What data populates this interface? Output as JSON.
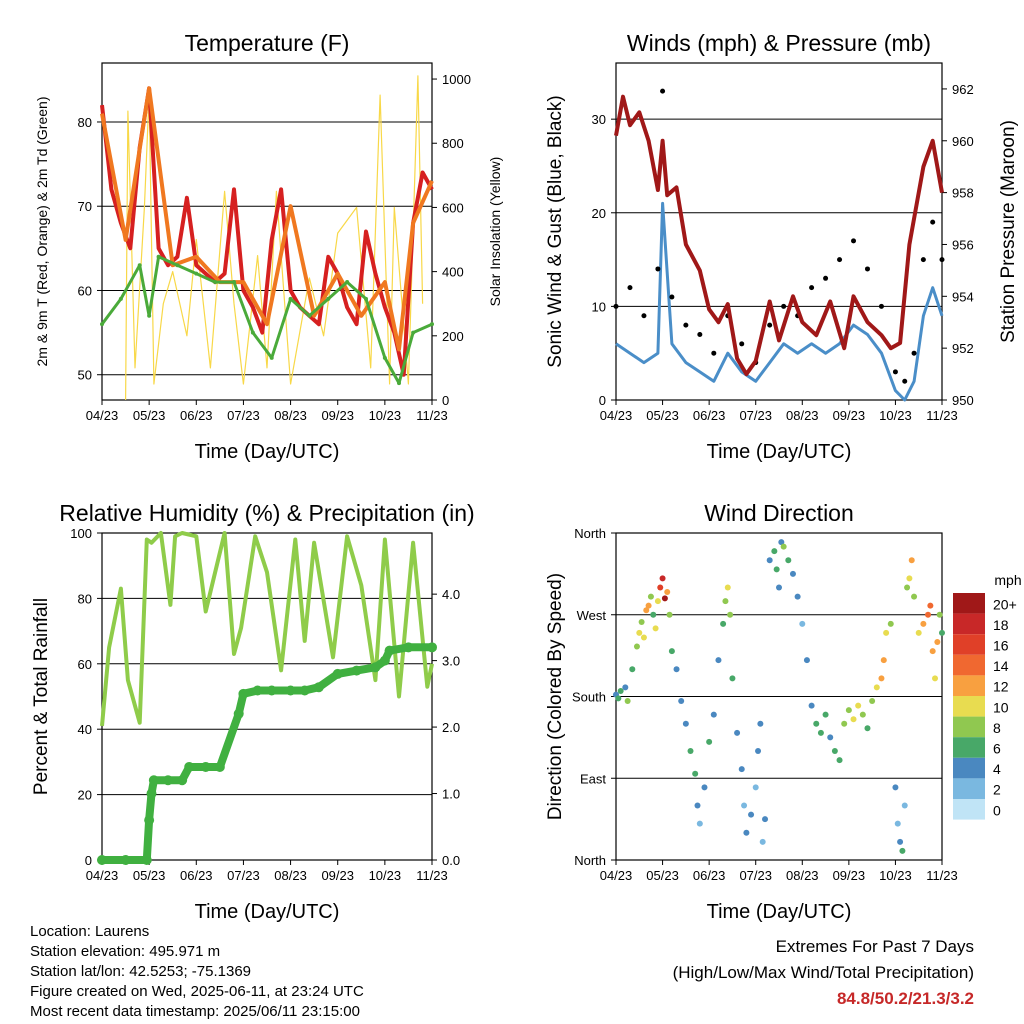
{
  "months": [
    "04/23",
    "05/23",
    "06/23",
    "07/23",
    "08/23",
    "09/23",
    "10/23",
    "11/23"
  ],
  "colors": {
    "temp2m": "#d62020",
    "temp9m": "#f07820",
    "dewpoint": "#4aaa3a",
    "solar": "#f8d848",
    "wind": "#4a8ec8",
    "gust": "#000000",
    "pressure": "#a01818",
    "rh": "#8fcc4a",
    "precip": "#40b040"
  },
  "chart_data": [
    {
      "type": "line",
      "title": "Temperature (F)",
      "xlabel": "Time (Day/UTC)",
      "ylabel": "2m & 9m T (Red, Orange) & 2m Td (Green)",
      "ylabel_right": "Solar Insolation (Yellow)",
      "ylim": [
        47,
        87
      ],
      "yticks": [
        50,
        60,
        70,
        80
      ],
      "ylim_right": [
        0,
        1050
      ],
      "yticks_right": [
        0,
        200,
        400,
        600,
        800,
        1000
      ],
      "grid": true,
      "series": [
        {
          "key": "temp2m",
          "axis": "left",
          "x": [
            0,
            0.2,
            0.4,
            0.6,
            0.8,
            1.0,
            1.2,
            1.4,
            1.6,
            1.8,
            2.0,
            2.2,
            2.4,
            2.6,
            2.8,
            3.0,
            3.2,
            3.4,
            3.6,
            3.8,
            4.0,
            4.2,
            4.4,
            4.6,
            4.8,
            5.0,
            5.2,
            5.4,
            5.6,
            5.8,
            6.0,
            6.2,
            6.4,
            6.6,
            6.8,
            7.0
          ],
          "values": [
            82,
            72,
            68,
            65,
            77,
            84,
            65,
            63,
            64,
            71,
            63,
            62,
            61,
            62,
            72,
            60,
            58,
            55,
            66,
            72,
            60,
            58,
            57,
            56,
            64,
            62,
            58,
            56,
            67,
            62,
            58,
            55,
            50,
            68,
            74,
            72
          ]
        },
        {
          "key": "temp9m",
          "axis": "left",
          "x": [
            0,
            0.5,
            1.0,
            1.5,
            2.0,
            2.5,
            3.0,
            3.5,
            4.0,
            4.5,
            5.0,
            5.5,
            6.0,
            6.3,
            6.6,
            7.0
          ],
          "values": [
            81,
            66,
            84,
            63,
            64,
            61,
            61,
            56,
            70,
            57,
            62,
            57,
            61,
            53,
            68,
            73
          ]
        },
        {
          "key": "dewpoint",
          "axis": "left",
          "x": [
            0,
            0.4,
            0.8,
            1.0,
            1.2,
            1.6,
            2.0,
            2.4,
            2.8,
            3.2,
            3.6,
            4.0,
            4.4,
            4.8,
            5.2,
            5.6,
            6.0,
            6.3,
            6.6,
            7.0
          ],
          "values": [
            56,
            59,
            63,
            57,
            64,
            63,
            62,
            61,
            61,
            55,
            52,
            59,
            57,
            59,
            61,
            59,
            52,
            49,
            55,
            56
          ]
        },
        {
          "key": "solar",
          "axis": "right",
          "x": [
            0.5,
            0.55,
            0.7,
            0.9,
            1.0,
            1.1,
            1.3,
            1.5,
            1.8,
            2.0,
            2.3,
            2.6,
            2.8,
            3.0,
            3.3,
            3.5,
            3.7,
            4.0,
            4.4,
            4.7,
            5.0,
            5.4,
            5.7,
            5.9,
            6.1,
            6.2,
            6.5,
            6.7,
            6.8
          ],
          "values": [
            0,
            900,
            100,
            600,
            950,
            50,
            300,
            400,
            200,
            500,
            100,
            650,
            300,
            50,
            450,
            100,
            650,
            50,
            380,
            200,
            520,
            600,
            100,
            950,
            50,
            600,
            50,
            1010,
            300
          ]
        }
      ]
    },
    {
      "type": "line",
      "title": "Winds (mph) & Pressure (mb)",
      "xlabel": "Time (Day/UTC)",
      "ylabel": "Sonic Wind & Gust (Blue, Black)",
      "ylabel_right": "Station Pressure (Maroon)",
      "ylim": [
        0,
        36
      ],
      "yticks": [
        0,
        10,
        20,
        30
      ],
      "ylim_right": [
        950,
        963
      ],
      "yticks_right": [
        950,
        952,
        954,
        956,
        958,
        960,
        962
      ],
      "grid": true,
      "series": [
        {
          "key": "wind",
          "axis": "left",
          "x": [
            0,
            0.3,
            0.6,
            0.9,
            1.0,
            1.2,
            1.5,
            1.8,
            2.1,
            2.4,
            2.7,
            3.0,
            3.3,
            3.6,
            3.9,
            4.2,
            4.5,
            4.8,
            5.1,
            5.4,
            5.7,
            6.0,
            6.2,
            6.4,
            6.6,
            6.8,
            7.0
          ],
          "values": [
            6,
            5,
            4,
            5,
            21,
            6,
            4,
            3,
            2,
            5,
            3,
            2,
            4,
            6,
            5,
            6,
            5,
            6,
            8,
            7,
            5,
            1,
            0,
            2,
            9,
            12,
            9
          ]
        },
        {
          "key": "gust",
          "axis": "left",
          "x": [
            0,
            0.3,
            0.6,
            0.9,
            1.0,
            1.2,
            1.5,
            1.8,
            2.1,
            2.4,
            2.7,
            3.0,
            3.3,
            3.6,
            3.9,
            4.2,
            4.5,
            4.8,
            5.1,
            5.4,
            5.7,
            6.0,
            6.2,
            6.4,
            6.6,
            6.8,
            7.0
          ],
          "values": [
            10,
            12,
            9,
            14,
            33,
            11,
            8,
            7,
            5,
            9,
            6,
            4,
            8,
            10,
            9,
            12,
            13,
            15,
            17,
            14,
            10,
            3,
            2,
            5,
            15,
            19,
            15
          ]
        },
        {
          "key": "pressure",
          "axis": "right",
          "x": [
            0,
            0.15,
            0.3,
            0.5,
            0.7,
            0.9,
            1.0,
            1.1,
            1.3,
            1.5,
            1.8,
            2.0,
            2.2,
            2.4,
            2.6,
            2.8,
            3.0,
            3.3,
            3.5,
            3.8,
            4.0,
            4.3,
            4.6,
            4.9,
            5.1,
            5.4,
            5.7,
            5.9,
            6.1,
            6.3,
            6.6,
            6.8,
            7.0
          ],
          "values": [
            960.2,
            961.7,
            960.6,
            961.1,
            960.0,
            958.1,
            960.0,
            957.9,
            958.2,
            956.0,
            955.0,
            953.5,
            953.0,
            953.7,
            951.6,
            951.0,
            951.5,
            953.8,
            952.3,
            954.0,
            953.0,
            952.5,
            953.8,
            952.0,
            954.0,
            953.0,
            952.5,
            952.0,
            952.2,
            956.0,
            959.0,
            960.0,
            958.0
          ]
        }
      ]
    },
    {
      "type": "line",
      "title": "Relative Humidity (%) & Precipitation (in)",
      "xlabel": "Time (Day/UTC)",
      "ylabel": "Percent & Total Rainfall",
      "ylim": [
        0,
        100
      ],
      "yticks": [
        0,
        20,
        40,
        60,
        80,
        100
      ],
      "ylim_right": [
        0,
        4.92
      ],
      "yticks_right": [
        "0.0",
        "1.0",
        "2.0",
        "3.0",
        "4.0"
      ],
      "grid": true,
      "series": [
        {
          "key": "rh",
          "axis": "left",
          "x": [
            0,
            0.15,
            0.4,
            0.55,
            0.8,
            0.95,
            1.05,
            1.25,
            1.45,
            1.55,
            1.7,
            2.0,
            2.2,
            2.6,
            2.8,
            2.95,
            3.25,
            3.5,
            3.8,
            4.1,
            4.3,
            4.5,
            4.9,
            5.2,
            5.5,
            5.8,
            6.0,
            6.3,
            6.6,
            6.9,
            7.0
          ],
          "values": [
            41,
            65,
            83,
            55,
            42,
            98,
            97,
            100,
            78,
            99,
            100,
            99,
            76,
            100,
            63,
            71,
            99,
            88,
            58,
            98,
            67,
            97,
            62,
            99,
            84,
            55,
            98,
            50,
            97,
            53,
            60
          ]
        },
        {
          "key": "precip",
          "axis": "right",
          "x": [
            0,
            0.5,
            0.95,
            1.0,
            1.05,
            1.1,
            1.4,
            1.7,
            1.85,
            2.2,
            2.5,
            2.9,
            3.0,
            3.3,
            3.6,
            4.0,
            4.3,
            4.6,
            5.0,
            5.4,
            5.8,
            6.0,
            6.1,
            6.5,
            7.0
          ],
          "values": [
            0,
            0,
            0,
            0.6,
            1.0,
            1.2,
            1.2,
            1.2,
            1.4,
            1.4,
            1.4,
            2.2,
            2.5,
            2.55,
            2.55,
            2.55,
            2.55,
            2.6,
            2.8,
            2.85,
            2.9,
            3.0,
            3.15,
            3.2,
            3.2
          ]
        }
      ]
    },
    {
      "type": "scatter",
      "title": "Wind Direction",
      "xlabel": "Time (Day/UTC)",
      "ylabel": "Direction (Colored By Speed)",
      "yticks": [
        "North",
        "East",
        "South",
        "West",
        "North"
      ],
      "ylim": [
        0,
        360
      ],
      "legend": {
        "title": "mph",
        "labels": [
          "20+",
          "18",
          "16",
          "14",
          "12",
          "10",
          "8",
          "6",
          "4",
          "2",
          "0"
        ],
        "colors": [
          "#a01818",
          "#c82828",
          "#e04028",
          "#f06830",
          "#f8a040",
          "#e8dc50",
          "#90c850",
          "#48a868",
          "#4a88c0",
          "#7ab8e0",
          "#c0e4f6"
        ]
      },
      "grid": true,
      "points": [
        [
          0.0,
          182,
          4
        ],
        [
          0.05,
          178,
          5
        ],
        [
          0.1,
          186,
          6
        ],
        [
          0.2,
          190,
          4
        ],
        [
          0.25,
          175,
          7
        ],
        [
          0.35,
          210,
          6
        ],
        [
          0.45,
          235,
          8
        ],
        [
          0.5,
          250,
          9
        ],
        [
          0.55,
          262,
          7
        ],
        [
          0.6,
          245,
          10
        ],
        [
          0.65,
          275,
          11
        ],
        [
          0.7,
          280,
          12
        ],
        [
          0.75,
          290,
          8
        ],
        [
          0.8,
          270,
          6
        ],
        [
          0.85,
          255,
          9
        ],
        [
          0.9,
          285,
          10
        ],
        [
          0.95,
          300,
          16
        ],
        [
          1.0,
          310,
          18
        ],
        [
          1.05,
          288,
          20
        ],
        [
          1.1,
          295,
          12
        ],
        [
          1.15,
          270,
          7
        ],
        [
          1.2,
          230,
          5
        ],
        [
          1.3,
          210,
          4
        ],
        [
          1.4,
          175,
          3
        ],
        [
          1.5,
          150,
          4
        ],
        [
          1.6,
          120,
          5
        ],
        [
          1.7,
          95,
          6
        ],
        [
          1.75,
          60,
          3
        ],
        [
          1.8,
          40,
          2
        ],
        [
          1.9,
          80,
          4
        ],
        [
          2.0,
          130,
          5
        ],
        [
          2.1,
          160,
          3
        ],
        [
          2.2,
          220,
          4
        ],
        [
          2.3,
          260,
          6
        ],
        [
          2.35,
          285,
          8
        ],
        [
          2.4,
          300,
          10
        ],
        [
          2.45,
          270,
          7
        ],
        [
          2.5,
          200,
          5
        ],
        [
          2.6,
          140,
          4
        ],
        [
          2.7,
          100,
          3
        ],
        [
          2.75,
          60,
          2
        ],
        [
          2.8,
          30,
          3
        ],
        [
          2.9,
          50,
          4
        ],
        [
          3.0,
          80,
          2
        ],
        [
          3.05,
          120,
          3
        ],
        [
          3.1,
          150,
          4
        ],
        [
          3.15,
          20,
          2
        ],
        [
          3.2,
          45,
          3
        ],
        [
          3.3,
          330,
          4
        ],
        [
          3.4,
          340,
          5
        ],
        [
          3.45,
          320,
          6
        ],
        [
          3.5,
          300,
          4
        ],
        [
          3.55,
          350,
          3
        ],
        [
          3.6,
          345,
          7
        ],
        [
          3.7,
          330,
          5
        ],
        [
          3.8,
          315,
          4
        ],
        [
          3.9,
          290,
          3
        ],
        [
          4.0,
          260,
          2
        ],
        [
          4.1,
          220,
          3
        ],
        [
          4.2,
          170,
          4
        ],
        [
          4.3,
          150,
          5
        ],
        [
          4.4,
          140,
          6
        ],
        [
          4.5,
          160,
          5
        ],
        [
          4.6,
          135,
          4
        ],
        [
          4.7,
          120,
          5
        ],
        [
          4.8,
          110,
          6
        ],
        [
          4.9,
          150,
          7
        ],
        [
          5.0,
          165,
          8
        ],
        [
          5.1,
          155,
          9
        ],
        [
          5.2,
          170,
          10
        ],
        [
          5.3,
          160,
          8
        ],
        [
          5.4,
          145,
          6
        ],
        [
          5.5,
          175,
          7
        ],
        [
          5.6,
          190,
          9
        ],
        [
          5.7,
          200,
          11
        ],
        [
          5.75,
          220,
          12
        ],
        [
          5.8,
          250,
          10
        ],
        [
          5.9,
          260,
          8
        ],
        [
          6.0,
          80,
          3
        ],
        [
          6.05,
          40,
          2
        ],
        [
          6.1,
          20,
          4
        ],
        [
          6.15,
          10,
          5
        ],
        [
          6.2,
          60,
          2
        ],
        [
          6.25,
          300,
          7
        ],
        [
          6.3,
          310,
          10
        ],
        [
          6.35,
          330,
          12
        ],
        [
          6.4,
          290,
          8
        ],
        [
          6.5,
          250,
          10
        ],
        [
          6.6,
          260,
          12
        ],
        [
          6.7,
          270,
          14
        ],
        [
          6.75,
          280,
          13
        ],
        [
          6.8,
          230,
          11
        ],
        [
          6.85,
          200,
          9
        ],
        [
          6.9,
          240,
          12
        ],
        [
          6.95,
          270,
          8
        ],
        [
          7.0,
          250,
          6
        ]
      ]
    }
  ],
  "info": {
    "location": "Location: Laurens",
    "elevation": "Station elevation: 495.971 m",
    "latlon": "Station lat/lon: 42.5253; -75.1369",
    "created": "Figure created on Wed, 2025-06-11, at 23:24 UTC",
    "recent": "Most recent data timestamp: 2025/06/11 23:15:00"
  },
  "extremes": {
    "title": "Extremes For Past 7 Days",
    "subtitle": "(High/Low/Max Wind/Total Precipitation)",
    "values": "84.8/50.2/21.3/3.2"
  }
}
